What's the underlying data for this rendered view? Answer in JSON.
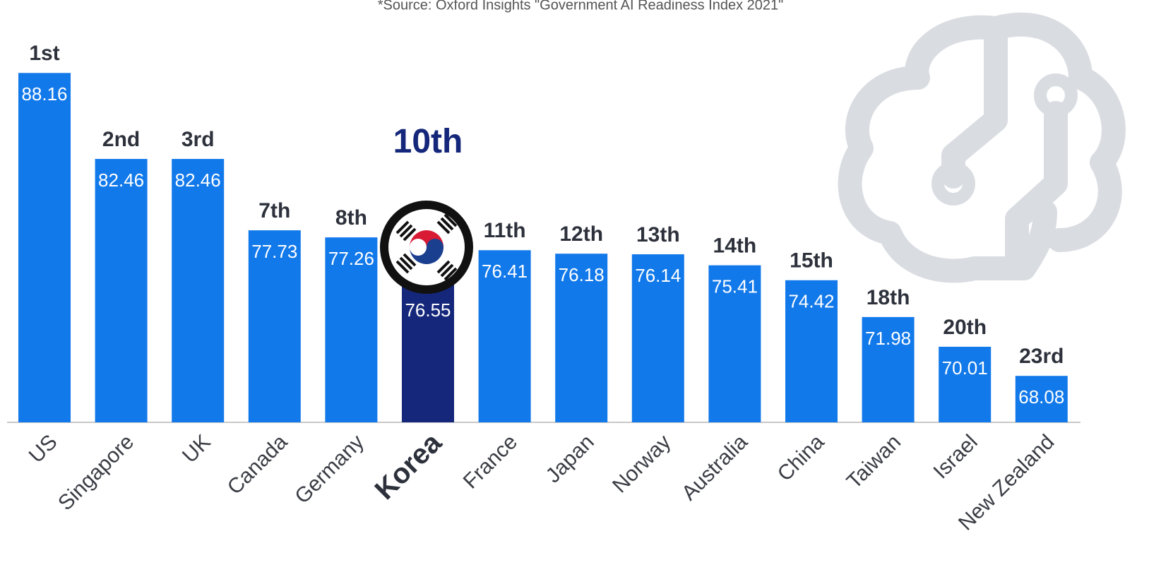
{
  "chart_data": {
    "type": "bar",
    "source": "*Source: Oxford Insights \"Government AI Readiness Index 2021\"",
    "categories": [
      "US",
      "Singapore",
      "UK",
      "Canada",
      "Germany",
      "Korea",
      "France",
      "Japan",
      "Norway",
      "Australia",
      "China",
      "Taiwan",
      "Israel",
      "New Zealand"
    ],
    "values": [
      88.16,
      82.46,
      82.46,
      77.73,
      77.26,
      76.55,
      76.41,
      76.18,
      76.14,
      75.41,
      74.42,
      71.98,
      70.01,
      68.08
    ],
    "ranks": [
      "1st",
      "2nd",
      "3rd",
      "7th",
      "8th",
      "10th",
      "11th",
      "12th",
      "13th",
      "14th",
      "15th",
      "18th",
      "20th",
      "23rd"
    ],
    "colors": [
      "#1279ea",
      "#1279ea",
      "#1279ea",
      "#1279ea",
      "#1279ea",
      "#15277a",
      "#1279ea",
      "#1279ea",
      "#1279ea",
      "#1279ea",
      "#1279ea",
      "#1279ea",
      "#1279ea",
      "#1279ea"
    ],
    "ylim": [
      65,
      90
    ]
  }
}
